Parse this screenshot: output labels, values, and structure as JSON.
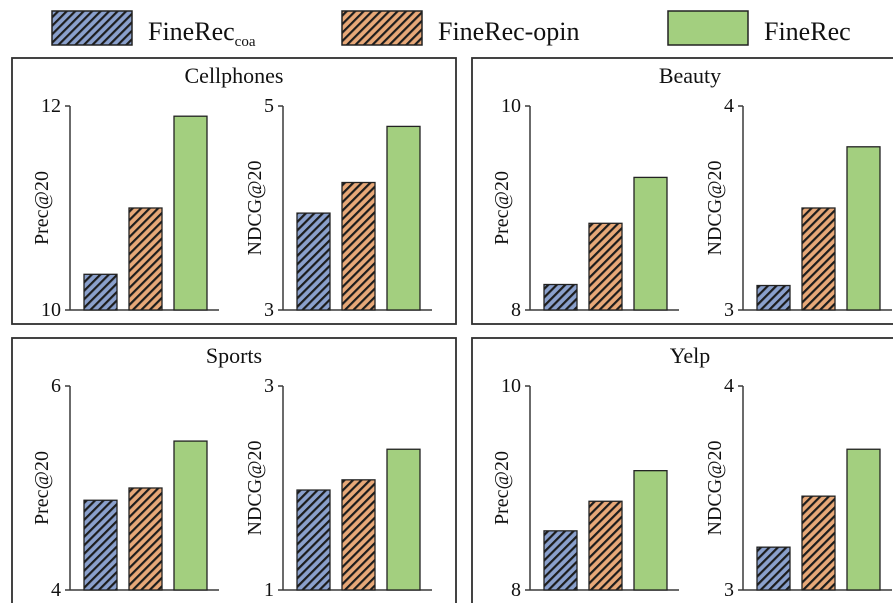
{
  "legend": [
    {
      "name": "FineRec",
      "sub": "coa",
      "pattern": "blue-hatch"
    },
    {
      "name": "FineRec-opin",
      "sub": "",
      "pattern": "orange-hatch"
    },
    {
      "name": "FineRec",
      "sub": "",
      "pattern": "green-solid"
    }
  ],
  "colors": {
    "blue_fill": "#8aa0cc",
    "orange_fill": "#e7a878",
    "green_fill": "#a3cf7f",
    "hatch": "#1c1c1c",
    "axis": "#3a3a3a",
    "frame": "#2f2f2f"
  },
  "chart_data": [
    {
      "type": "bar",
      "title": "Cellphones",
      "subplots": [
        {
          "ylabel": "Prec@20",
          "ylim": [
            10,
            12
          ],
          "yticks": [
            "10",
            "12"
          ],
          "values": [
            10.35,
            11.0,
            11.9
          ]
        },
        {
          "ylabel": "NDCG@20",
          "ylim": [
            3,
            5
          ],
          "yticks": [
            "3",
            "5"
          ],
          "values": [
            3.95,
            4.25,
            4.8
          ]
        }
      ]
    },
    {
      "type": "bar",
      "title": "Beauty",
      "subplots": [
        {
          "ylabel": "Prec@20",
          "ylim": [
            8,
            10
          ],
          "yticks": [
            "8",
            "10"
          ],
          "values": [
            8.25,
            8.85,
            9.3
          ]
        },
        {
          "ylabel": "NDCG@20",
          "ylim": [
            3,
            4
          ],
          "yticks": [
            "3",
            "4"
          ],
          "values": [
            3.12,
            3.5,
            3.8
          ]
        }
      ]
    },
    {
      "type": "bar",
      "title": "Sports",
      "subplots": [
        {
          "ylabel": "Prec@20",
          "ylim": [
            4,
            6
          ],
          "yticks": [
            "4",
            "6"
          ],
          "values": [
            4.88,
            5.0,
            5.46
          ]
        },
        {
          "ylabel": "NDCG@20",
          "ylim": [
            1,
            3
          ],
          "yticks": [
            "1",
            "3"
          ],
          "values": [
            1.98,
            2.08,
            2.38
          ]
        }
      ]
    },
    {
      "type": "bar",
      "title": "Yelp",
      "subplots": [
        {
          "ylabel": "Prec@20",
          "ylim": [
            8,
            10
          ],
          "yticks": [
            "8",
            "10"
          ],
          "values": [
            8.58,
            8.87,
            9.17
          ]
        },
        {
          "ylabel": "NDCG@20",
          "ylim": [
            3,
            4
          ],
          "yticks": [
            "3",
            "4"
          ],
          "values": [
            3.21,
            3.46,
            3.69
          ]
        }
      ]
    }
  ]
}
